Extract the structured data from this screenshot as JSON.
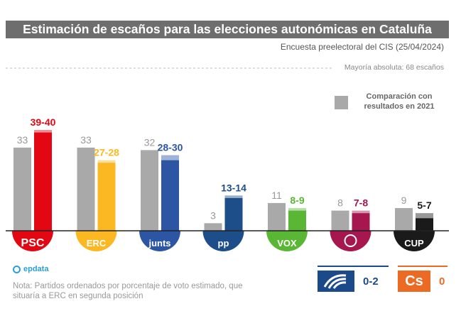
{
  "title": "Estimación de escaños para las elecciones autonómicas en Cataluña",
  "subtitle": "Encuesta preelectoral del CIS (25/04/2024)",
  "majority_label": "Mayoría absoluta: 68 escaños",
  "legend_label": "Comparación con resultados en 2021",
  "source": "epdata",
  "note": "Nota: Partidos ordenados por porcentaje de voto estimado, que situaría a ERC en segunda posición",
  "colors": {
    "previous": "#a9a9a9",
    "PSC": "#e30613",
    "ERC": "#fbb823",
    "Junts": "#2c55a3",
    "PP": "#1d4e89",
    "Vox": "#5ab735",
    "Comuns": "#a6164f",
    "CUP": "#1a1a1a",
    "Alhora": "#1b4a8a",
    "Cs": "#eb6a24"
  },
  "chart_data": {
    "type": "bar",
    "categories": [
      "PSC",
      "ERC",
      "Junts",
      "PP",
      "Vox",
      "Comuns",
      "CUP"
    ],
    "logo_text": [
      "PSC",
      "ERC",
      "junts",
      "pp",
      "VOX",
      "",
      "CUP"
    ],
    "series": [
      {
        "name": "Comparación con resultados en 2021",
        "values": [
          33,
          33,
          32,
          3,
          11,
          8,
          9
        ]
      },
      {
        "values": [
          [
            39,
            40
          ],
          [
            27,
            28
          ],
          [
            28,
            30
          ],
          [
            13,
            14
          ],
          [
            8,
            9
          ],
          [
            7,
            8
          ],
          [
            5,
            7
          ]
        ]
      }
    ],
    "previous_labels": [
      "33",
      "33",
      "32",
      "3",
      "11",
      "8",
      "9"
    ],
    "estimate_labels": [
      "39-40",
      "27-28",
      "28-30",
      "13-14",
      "8-9",
      "7-8",
      "5-7"
    ],
    "ylim": [
      0,
      45
    ],
    "majority_reference": 68,
    "extra": [
      {
        "party": "Alhora",
        "label": "0-2"
      },
      {
        "party": "Cs",
        "logo_text": "Cs",
        "label": "0"
      }
    ]
  }
}
